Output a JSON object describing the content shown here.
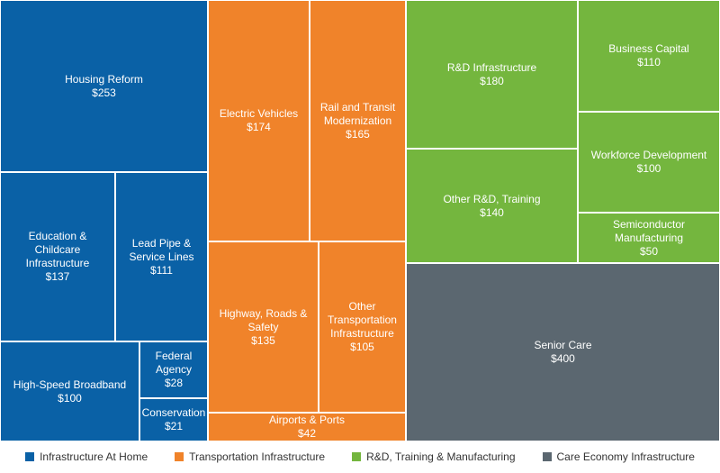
{
  "chart_data": {
    "type": "treemap",
    "currency": "$",
    "groups": [
      {
        "name": "Infrastructure At Home",
        "color": "#0a61a6",
        "items": [
          {
            "label": "Housing Reform",
            "value": 253
          },
          {
            "label": "Education & Childcare\nInfrastructure",
            "value": 137
          },
          {
            "label": "Lead Pipe &\nService Lines",
            "value": 111
          },
          {
            "label": "High-Speed Broadband",
            "value": 100
          },
          {
            "label": "Federal\nAgency",
            "value": 28
          },
          {
            "label": "Conservation",
            "value": 21
          }
        ]
      },
      {
        "name": "Transportation Infrastructure",
        "color": "#f0832a",
        "items": [
          {
            "label": "Electric Vehicles",
            "value": 174
          },
          {
            "label": "Rail and Transit\nModernization",
            "value": 165
          },
          {
            "label": "Highway, Roads &\nSafety",
            "value": 135
          },
          {
            "label": "Other\nTransportation\nInfrastructure",
            "value": 105
          },
          {
            "label": "Airports & Ports",
            "value": 42
          }
        ]
      },
      {
        "name": "R&D, Training & Manufacturing",
        "color": "#74b63e",
        "items": [
          {
            "label": "R&D Infrastructure",
            "value": 180
          },
          {
            "label": "Business Capital",
            "value": 110
          },
          {
            "label": "Workforce Development",
            "value": 100
          },
          {
            "label": "Other R&D, Training",
            "value": 140
          },
          {
            "label": "Semiconductor\nManufacturing",
            "value": 50
          }
        ]
      },
      {
        "name": "Care Economy Infrastructure",
        "color": "#5b6770",
        "items": [
          {
            "label": "Senior Care",
            "value": 400
          }
        ]
      }
    ]
  }
}
